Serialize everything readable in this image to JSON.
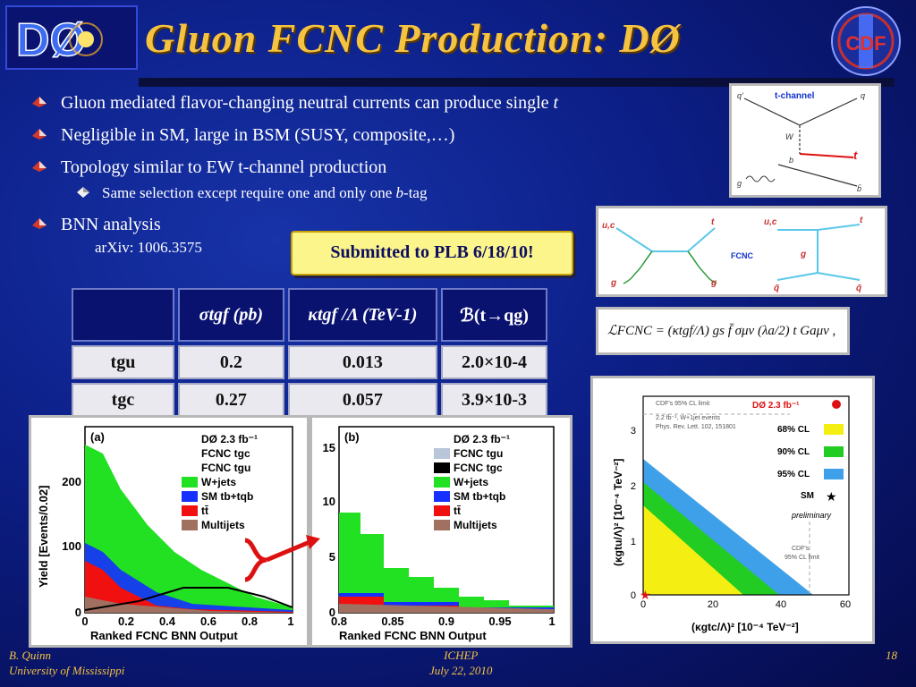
{
  "title": "Gluon FCNC Production: DØ",
  "logos": {
    "left": "DØ",
    "right": "CDF"
  },
  "bullets": [
    {
      "text_before": "Gluon mediated flavor-changing neutral currents can produce single ",
      "italic": "t"
    },
    {
      "text": "Negligible in SM, large in BSM (SUSY, composite,…)"
    },
    {
      "text": "Topology similar to EW t-channel production"
    }
  ],
  "sub_bullet": {
    "text_before": "Same selection except require one and only one ",
    "italic": "b",
    "text_after": "-tag"
  },
  "bnn": "BNN analysis",
  "arxiv": "arXiv: 1006.3575",
  "callout": "Submitted to PLB 6/18/10!",
  "table": {
    "headers": [
      "",
      "σtgf (pb)",
      "κtgf /Λ (TeV-1)",
      "ℬ(t→qg)"
    ],
    "rows": [
      {
        "label": "tgu",
        "sigma": "0.2",
        "kappa": "0.013",
        "br": "2.0×10-4"
      },
      {
        "label": "tgc",
        "sigma": "0.27",
        "kappa": "0.057",
        "br": "3.9×10-3"
      }
    ]
  },
  "diagrams": {
    "tchannel_label": "t-channel",
    "tchannel_particles": [
      "q'",
      "q",
      "W",
      "b",
      "t",
      "g",
      "b̄"
    ],
    "fcnc_label": "FCNC",
    "fcnc_particles": [
      "u,c",
      "t",
      "g",
      "g",
      "u,c",
      "t",
      "g",
      "q̄",
      "q̄"
    ],
    "lagrangian": "ℒFCNC = (κtgf/Λ) gs f̄ σμν (λa/2) t Gaμν ,"
  },
  "limit_plot": {
    "legend": [
      "DØ  2.3 fb⁻¹",
      "68% CL",
      "90% CL",
      "95% CL",
      "SM",
      "preliminary"
    ],
    "note": [
      "CDF's 95% CL limit",
      "2.2 fb⁻¹, W+1jet events",
      "Phys. Rev. Lett. 102, 151801"
    ],
    "cdf_label": [
      "CDF's",
      "95% CL limit"
    ],
    "xlabel": "(κgtc/Λ)²  [10⁻⁴ TeV⁻²]",
    "ylabel": "(κgtu/Λ)²  [10⁻⁴ TeV⁻²]",
    "xticks": [
      "0",
      "20",
      "40",
      "60"
    ],
    "yticks": [
      "0",
      "1",
      "2",
      "3"
    ],
    "colors": {
      "68": "#f5ee12",
      "90": "#22cc22",
      "95": "#3ea0e8"
    }
  },
  "plot_a": {
    "panel": "(a)",
    "legend": [
      "DØ 2.3 fb⁻¹",
      "FCNC tgc",
      "FCNC tgu",
      "W+jets",
      "SM tb+tqb",
      "tt̄",
      "Multijets"
    ],
    "ylabel": "Yield [Events/0.02]",
    "xlabel": "Ranked FCNC BNN Output",
    "xticks": [
      "0",
      "0.2",
      "0.4",
      "0.6",
      "0.8",
      "1"
    ],
    "yticks": [
      "0",
      "100",
      "200"
    ]
  },
  "plot_b": {
    "panel": "(b)",
    "legend": [
      "DØ 2.3 fb⁻¹",
      "FCNC tgu",
      "FCNC tgc",
      "W+jets",
      "SM tb+tqb",
      "tt̄",
      "Multijets"
    ],
    "xlabel": "Ranked FCNC BNN Output",
    "xticks": [
      "0.8",
      "0.85",
      "0.9",
      "0.95",
      "1"
    ],
    "yticks": [
      "0",
      "5",
      "10",
      "15"
    ]
  },
  "footer": {
    "left": [
      "B. Quinn",
      "University of Mississippi"
    ],
    "mid": [
      "ICHEP",
      "July 22, 2010"
    ],
    "right": "18"
  }
}
